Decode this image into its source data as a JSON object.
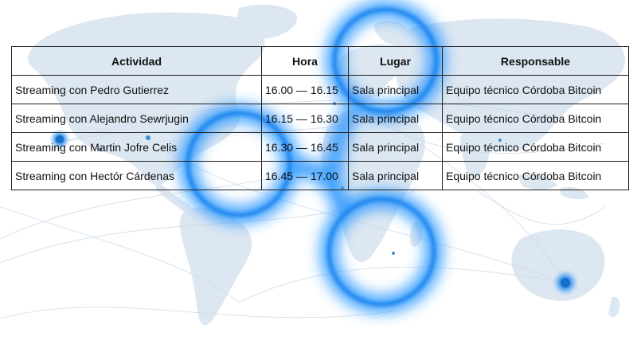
{
  "table": {
    "headers": [
      "Actividad",
      "Hora",
      "Lugar",
      "Responsable"
    ],
    "rows": [
      [
        "Streaming con Pedro Gutierrez",
        "16.00 — 16.15",
        "Sala principal",
        "Equipo técnico Córdoba Bitcoin"
      ],
      [
        "Streaming con Alejandro Sewrjugin",
        "16.15 — 16.30",
        "Sala principal",
        "Equipo técnico Córdoba Bitcoin"
      ],
      [
        "Streaming con Martin Jofre Celis",
        "16.30 — 16.45",
        "Sala principal",
        "Equipo técnico Córdoba Bitcoin"
      ],
      [
        "Streaming con Hectór Cárdenas",
        "16.45 — 17.00",
        "Sala principal",
        "Equipo técnico Córdoba Bitcoin"
      ]
    ]
  },
  "background": {
    "description_icon": "world-map-network",
    "map_color": "#dbe6f2",
    "glow_color": "#1e90ff"
  }
}
